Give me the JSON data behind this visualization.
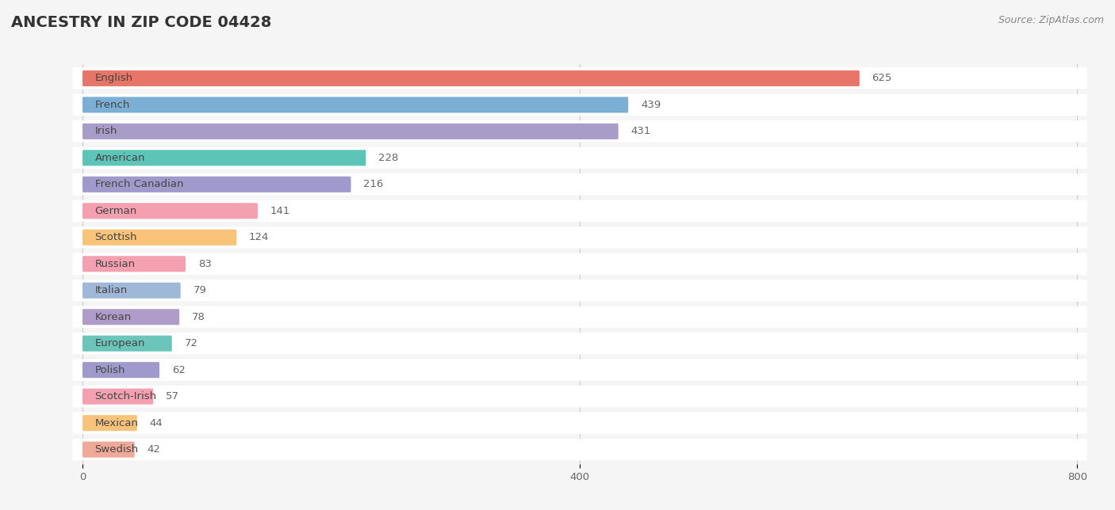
{
  "title": "ANCESTRY IN ZIP CODE 04428",
  "source": "Source: ZipAtlas.com",
  "categories": [
    "English",
    "French",
    "Irish",
    "American",
    "French Canadian",
    "German",
    "Scottish",
    "Russian",
    "Italian",
    "Korean",
    "European",
    "Polish",
    "Scotch-Irish",
    "Mexican",
    "Swedish"
  ],
  "values": [
    625,
    439,
    431,
    228,
    216,
    141,
    124,
    83,
    79,
    78,
    72,
    62,
    57,
    44,
    42
  ],
  "colors": [
    "#E8756A",
    "#7BAFD4",
    "#A89CC8",
    "#5DC5B8",
    "#A099CC",
    "#F4A0B0",
    "#F9C47A",
    "#F4A0B0",
    "#A0B8D8",
    "#B09CC8",
    "#6CC5BA",
    "#A099CC",
    "#F4A0B0",
    "#F9C47A",
    "#F0A898"
  ],
  "xlim": [
    0,
    800
  ],
  "xticks": [
    0,
    400,
    800
  ],
  "background_color": "#f5f5f5",
  "bar_background": "#ffffff",
  "title_fontsize": 14,
  "source_fontsize": 9,
  "label_fontsize": 9.5,
  "value_fontsize": 9.5,
  "label_color": "#444444",
  "value_color": "#666666"
}
